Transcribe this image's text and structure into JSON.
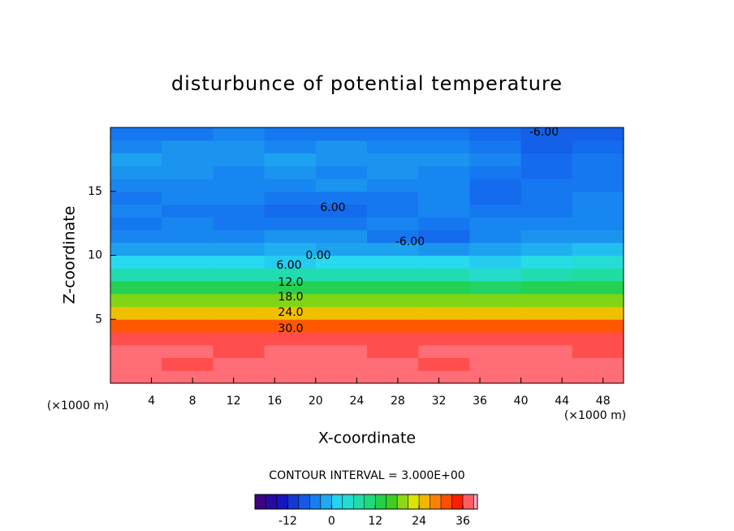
{
  "chart_data": {
    "type": "heatmap",
    "title": "disturbunce of potential temperature",
    "x_label": "X-coordinate",
    "y_label": "Z-coordinate",
    "x_unit": "(×1000 m)",
    "y_unit": "(×1000 m)",
    "contour_interval": {
      "value": 3,
      "label": "CONTOUR INTERVAL = 3.000E+00"
    },
    "contour_labels": [
      "-6.00",
      "6.00",
      "-6.00",
      "0.00",
      "6.00",
      "12.0",
      "18.0",
      "24.0",
      "30.0"
    ],
    "x": [
      2.5,
      7.5,
      12.5,
      17.5,
      22.5,
      27.5,
      32.5,
      37.5,
      42.5,
      47.5
    ],
    "y": [
      0.5,
      1.5,
      2.5,
      3.5,
      4.5,
      5.5,
      6.5,
      7.5,
      8.5,
      9.5,
      10.5,
      11.5,
      12.5,
      13.5,
      14.5,
      15.5,
      16.5,
      17.5,
      18.5,
      19.5
    ],
    "z": [
      [
        38,
        38,
        38,
        38,
        38,
        38,
        38,
        38,
        38,
        38
      ],
      [
        38,
        37,
        38,
        38,
        38,
        38,
        37,
        38,
        38,
        38
      ],
      [
        38,
        38,
        37,
        38,
        38,
        37,
        38,
        38,
        38,
        37
      ],
      [
        37,
        37,
        37,
        37,
        37,
        37,
        37,
        37,
        37,
        37
      ],
      [
        31,
        31,
        31,
        31,
        31,
        31,
        31,
        31,
        31,
        31
      ],
      [
        25,
        25,
        25,
        25,
        25,
        25,
        25,
        25,
        25,
        25
      ],
      [
        19,
        19,
        19,
        19,
        19,
        19,
        19,
        19,
        19,
        19
      ],
      [
        13,
        13,
        13,
        13,
        13,
        13,
        13,
        12,
        13,
        13
      ],
      [
        7,
        7,
        7,
        7,
        7,
        7,
        7,
        5,
        7,
        8
      ],
      [
        2,
        2,
        2,
        1,
        2,
        2,
        2,
        1,
        3,
        4
      ],
      [
        -2,
        -2,
        -2,
        -1,
        -2,
        -2,
        -3,
        -2,
        -1,
        0
      ],
      [
        -4,
        -4,
        -4,
        -3,
        -3,
        -5,
        -6,
        -4,
        -3,
        -3
      ],
      [
        -5,
        -4,
        -5,
        -5,
        -5,
        -4,
        -5,
        -4,
        -4,
        -4
      ],
      [
        -4,
        -5,
        -5,
        -6,
        -6,
        -5,
        -4,
        -5,
        -5,
        -4
      ],
      [
        -5,
        -4,
        -4,
        -5,
        -5,
        -5,
        -4,
        -6,
        -5,
        -4
      ],
      [
        -4,
        -4,
        -4,
        -4,
        -3,
        -4,
        -4,
        -6,
        -5,
        -5
      ],
      [
        -3,
        -3,
        -4,
        -3,
        -4,
        -3,
        -4,
        -5,
        -6,
        -5
      ],
      [
        -2,
        -3,
        -3,
        -2,
        -3,
        -3,
        -3,
        -4,
        -6,
        -5
      ],
      [
        -4,
        -3,
        -3,
        -4,
        -3,
        -4,
        -4,
        -5,
        -7,
        -6
      ],
      [
        -5,
        -5,
        -4,
        -5,
        -5,
        -5,
        -5,
        -6,
        -7,
        -7
      ]
    ],
    "xlim": [
      0,
      50
    ],
    "ylim": [
      0,
      20
    ],
    "xticks": [
      4,
      8,
      12,
      16,
      20,
      24,
      28,
      32,
      36,
      40,
      44,
      48
    ],
    "yticks": [
      5,
      10,
      15
    ],
    "clim": [
      -21,
      40
    ],
    "cticks": [
      -12,
      0,
      12,
      24,
      36
    ]
  }
}
